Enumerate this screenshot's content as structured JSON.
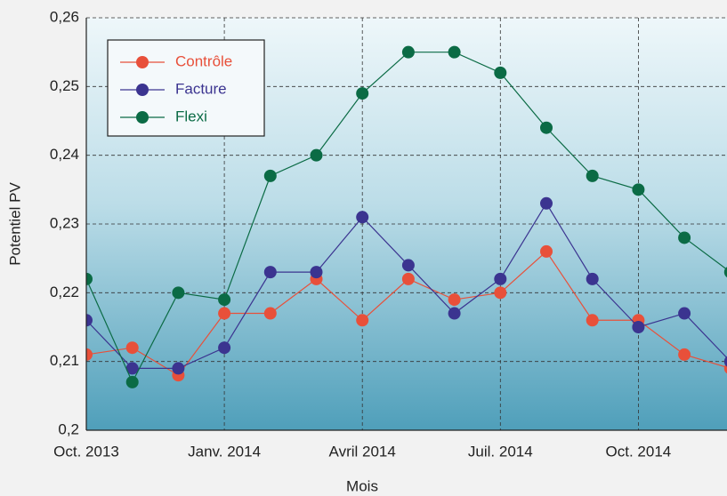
{
  "chart_data": {
    "type": "line",
    "xlabel": "Mois",
    "ylabel": "Potentiel PV",
    "categories": [
      "Oct. 2013",
      null,
      null,
      "Janv. 2014",
      null,
      null,
      "Avril 2014",
      null,
      null,
      "Juil. 2014",
      null,
      null,
      "Oct. 2014",
      null,
      null
    ],
    "series": [
      {
        "name": "Contrôle",
        "color": "#e8503a",
        "values": [
          0.211,
          0.212,
          0.208,
          0.217,
          0.217,
          0.222,
          0.216,
          0.222,
          0.219,
          0.22,
          0.226,
          0.216,
          0.216,
          0.211,
          0.209
        ]
      },
      {
        "name": "Facture",
        "color": "#3b3490",
        "values": [
          0.216,
          0.209,
          0.209,
          0.212,
          0.223,
          0.223,
          0.231,
          0.224,
          0.217,
          0.222,
          0.233,
          0.222,
          0.215,
          0.217,
          0.21
        ]
      },
      {
        "name": "Flexi",
        "color": "#0b6b45",
        "values": [
          0.222,
          0.207,
          0.22,
          0.219,
          0.237,
          0.24,
          0.249,
          0.255,
          0.255,
          0.252,
          0.244,
          0.237,
          0.235,
          0.228,
          0.223
        ]
      }
    ],
    "ylim": [
      0.2,
      0.26
    ],
    "yticks": [
      {
        "value": 0.2,
        "label": "0,2"
      },
      {
        "value": 0.21,
        "label": "0,21"
      },
      {
        "value": 0.22,
        "label": "0,22"
      },
      {
        "value": 0.23,
        "label": "0,23"
      },
      {
        "value": 0.24,
        "label": "0,24"
      },
      {
        "value": 0.25,
        "label": "0,25"
      },
      {
        "value": 0.26,
        "label": "0,26"
      }
    ],
    "grid": true,
    "legend": "upper left"
  }
}
